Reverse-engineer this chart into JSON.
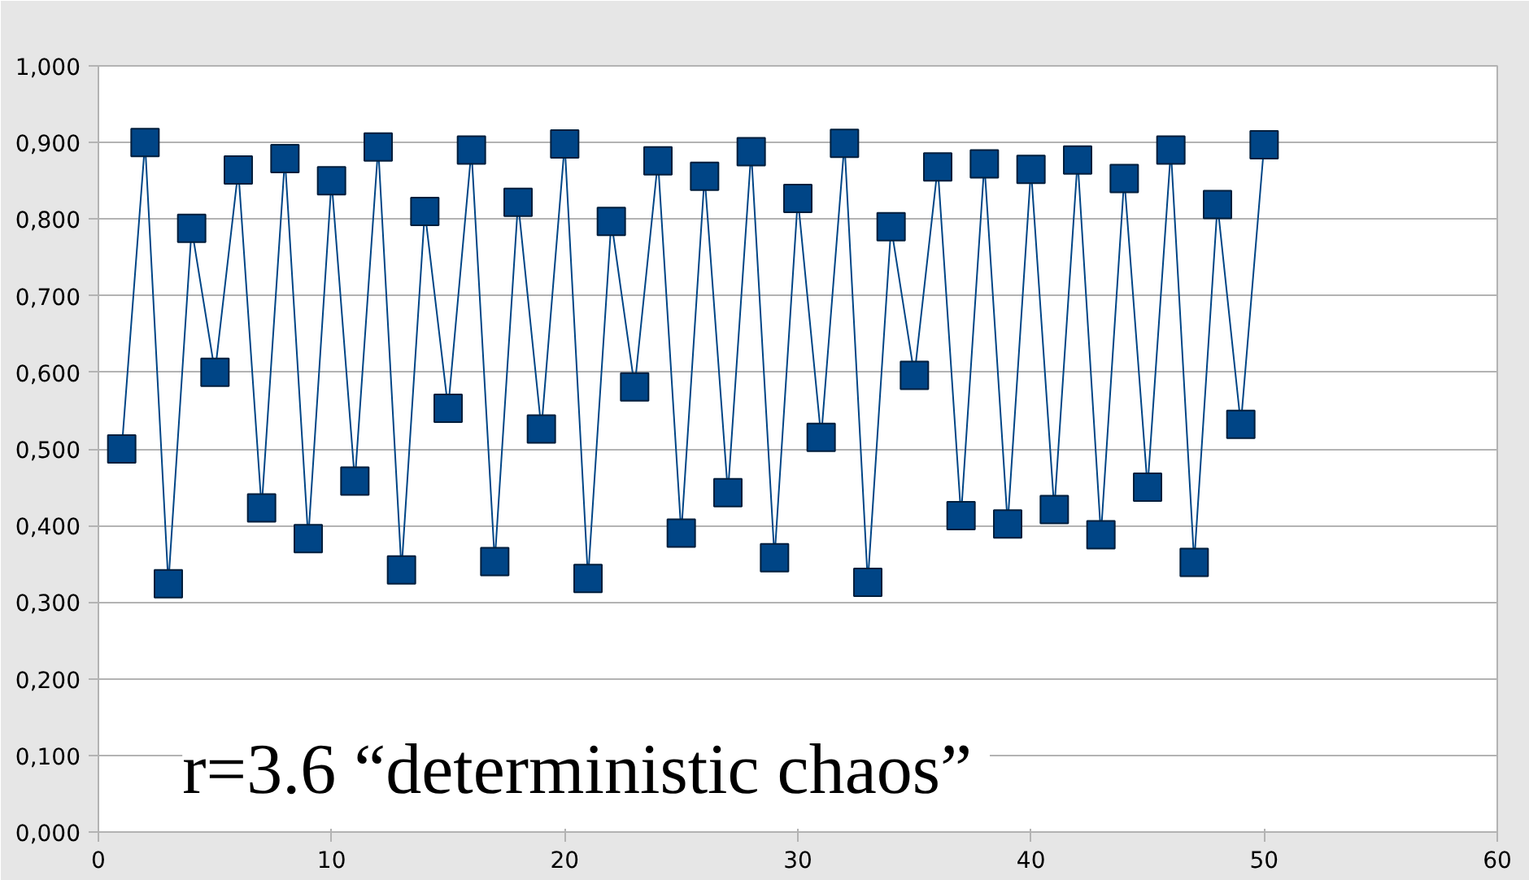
{
  "chart_data": {
    "type": "line",
    "marker": "square",
    "line_style": "solid",
    "grid": "y",
    "annotations": [
      "r=3.6  “deterministic chaos”"
    ],
    "x": [
      1,
      2,
      3,
      4,
      5,
      6,
      7,
      8,
      9,
      10,
      11,
      12,
      13,
      14,
      15,
      16,
      17,
      18,
      19,
      20,
      21,
      22,
      23,
      24,
      25,
      26,
      27,
      28,
      29,
      30,
      31,
      32,
      33,
      34,
      35,
      36,
      37,
      38,
      39,
      40,
      41,
      42,
      43,
      44,
      45,
      46,
      47,
      48,
      49,
      50
    ],
    "series": [
      {
        "color": "#004586",
        "values": [
          0.5,
          0.9,
          0.324,
          0.788,
          0.6,
          0.864,
          0.423,
          0.879,
          0.383,
          0.85,
          0.458,
          0.894,
          0.342,
          0.81,
          0.553,
          0.89,
          0.353,
          0.822,
          0.526,
          0.898,
          0.331,
          0.797,
          0.581,
          0.876,
          0.39,
          0.856,
          0.443,
          0.888,
          0.358,
          0.827,
          0.515,
          0.899,
          0.326,
          0.79,
          0.596,
          0.868,
          0.413,
          0.872,
          0.402,
          0.865,
          0.421,
          0.877,
          0.388,
          0.853,
          0.45,
          0.89,
          0.352,
          0.819,
          0.532,
          0.897
        ]
      }
    ],
    "xlim": [
      0,
      60
    ],
    "xticks": [
      0,
      10,
      20,
      30,
      40,
      50,
      60
    ],
    "ylim": [
      0,
      1
    ],
    "yticks": [
      {
        "value": 0,
        "label": "0,000"
      },
      {
        "value": 0.1,
        "label": "0,100"
      },
      {
        "value": 0.2,
        "label": "0,200"
      },
      {
        "value": 0.3,
        "label": "0,300"
      },
      {
        "value": 0.4,
        "label": "0,400"
      },
      {
        "value": 0.5,
        "label": "0,500"
      },
      {
        "value": 0.6,
        "label": "0,600"
      },
      {
        "value": 0.7,
        "label": "0,700"
      },
      {
        "value": 0.8,
        "label": "0,800"
      },
      {
        "value": 0.9,
        "label": "0,900"
      },
      {
        "value": 1,
        "label": "1,000"
      }
    ]
  }
}
